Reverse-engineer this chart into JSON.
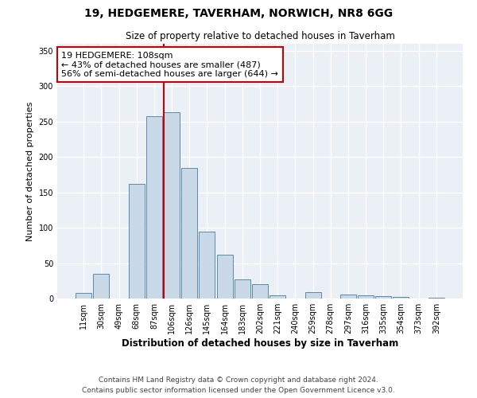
{
  "title1": "19, HEDGEMERE, TAVERHAM, NORWICH, NR8 6GG",
  "title2": "Size of property relative to detached houses in Taverham",
  "xlabel": "Distribution of detached houses by size in Taverham",
  "ylabel": "Number of detached properties",
  "bar_labels": [
    "11sqm",
    "30sqm",
    "49sqm",
    "68sqm",
    "87sqm",
    "106sqm",
    "126sqm",
    "145sqm",
    "164sqm",
    "183sqm",
    "202sqm",
    "221sqm",
    "240sqm",
    "259sqm",
    "278sqm",
    "297sqm",
    "316sqm",
    "335sqm",
    "354sqm",
    "373sqm",
    "392sqm"
  ],
  "bar_values": [
    8,
    35,
    0,
    162,
    258,
    263,
    184,
    95,
    62,
    27,
    20,
    4,
    0,
    9,
    0,
    6,
    4,
    3,
    2,
    0,
    1
  ],
  "bar_color": "#c9d9e8",
  "bar_edge_color": "#5a8ab0",
  "property_line_x": 5.0,
  "property_line_color": "#cc0000",
  "annotation_text": "19 HEDGEMERE: 108sqm\n← 43% of detached houses are smaller (487)\n56% of semi-detached houses are larger (644) →",
  "annotation_box_color": "#ffffff",
  "annotation_box_edge_color": "#cc0000",
  "ylim": [
    0,
    360
  ],
  "yticks": [
    0,
    50,
    100,
    150,
    200,
    250,
    300,
    350
  ],
  "footer1": "Contains HM Land Registry data © Crown copyright and database right 2024.",
  "footer2": "Contains public sector information licensed under the Open Government Licence v3.0.",
  "bg_color": "#ffffff",
  "plot_bg_color": "#eaf0f6"
}
